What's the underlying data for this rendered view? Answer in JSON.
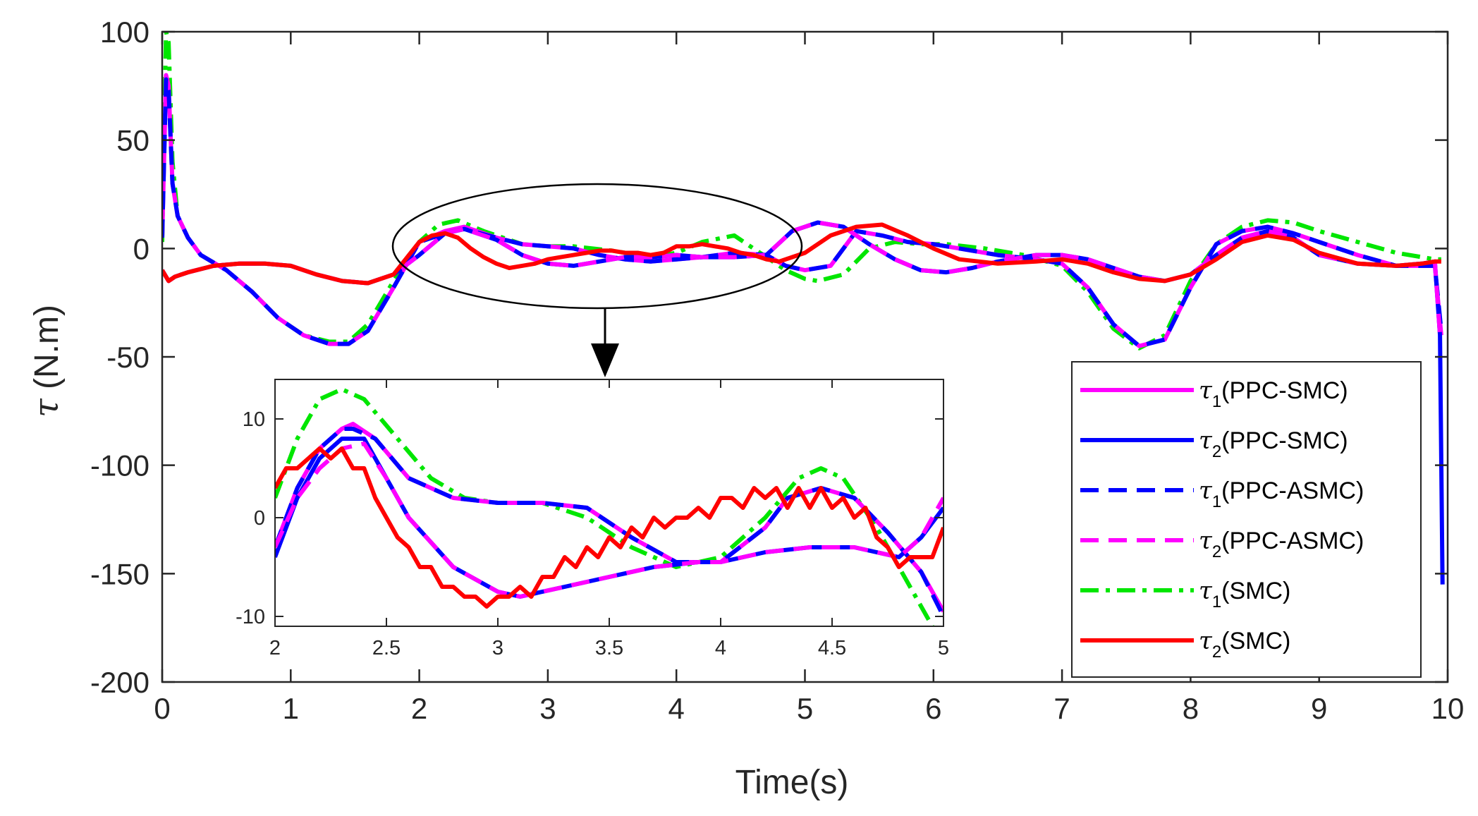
{
  "chart_data": {
    "type": "line",
    "title": "",
    "xlabel": "Time(s)",
    "ylabel_symbol": "τ",
    "ylabel_unit": " (N.m)",
    "xlim": [
      0,
      10
    ],
    "ylim": [
      -200,
      100
    ],
    "xticks": [
      0,
      1,
      2,
      3,
      4,
      5,
      6,
      7,
      8,
      9,
      10
    ],
    "yticks": [
      100,
      50,
      0,
      -50,
      -100,
      -150,
      -200
    ],
    "grid": false,
    "legend_position": "bottom-right",
    "series": [
      {
        "name": "τ1(PPC-SMC)",
        "sym": "τ",
        "sub": "1",
        "ctrl": "(PPC-SMC)",
        "color": "#ff00ff",
        "style": "solid",
        "x": [
          0,
          0.03,
          0.05,
          0.08,
          0.12,
          0.2,
          0.3,
          0.5,
          0.7,
          0.9,
          1.1,
          1.3,
          1.45,
          1.6,
          1.8,
          2.0,
          2.2,
          2.35,
          2.6,
          2.8,
          3.0,
          3.2,
          3.4,
          3.6,
          3.8,
          4.0,
          4.2,
          4.45,
          4.7,
          4.85,
          5.0,
          5.2,
          5.4,
          5.6,
          5.8,
          6.0,
          6.2,
          6.5,
          6.8,
          7.0,
          7.2,
          7.4,
          7.6,
          7.8,
          8.0,
          8.2,
          8.4,
          8.6,
          8.8,
          9.0,
          9.3,
          9.6,
          9.8,
          9.9,
          9.95
        ],
        "y": [
          5,
          80,
          75,
          30,
          15,
          5,
          -3,
          -10,
          -20,
          -32,
          -40,
          -44,
          -44,
          -38,
          -18,
          3,
          8,
          10,
          5,
          2,
          1,
          0,
          -3,
          -5,
          -6,
          -5,
          -4,
          -2,
          -3,
          -8,
          -10,
          -8,
          8,
          6,
          3,
          2,
          0,
          -3,
          -5,
          -7,
          -18,
          -35,
          -45,
          -42,
          -18,
          2,
          8,
          10,
          7,
          3,
          -3,
          -8,
          -8,
          -8,
          -40
        ]
      },
      {
        "name": "τ2(PPC-SMC)",
        "sym": "τ",
        "sub": "2",
        "ctrl": "(PPC-SMC)",
        "color": "#0000ff",
        "style": "solid",
        "x": [
          0,
          0.05,
          0.1,
          0.2,
          0.4,
          0.6,
          0.8,
          1.0,
          1.2,
          1.4,
          1.6,
          1.8,
          2.0,
          2.2,
          2.35,
          2.6,
          2.8,
          3.0,
          3.2,
          3.4,
          3.6,
          3.8,
          4.0,
          4.2,
          4.45,
          4.7,
          4.9,
          5.1,
          5.3,
          5.5,
          5.7,
          5.9,
          6.1,
          6.3,
          6.5,
          6.8,
          7.0,
          7.2,
          7.4,
          7.6,
          7.8,
          8.0,
          8.2,
          8.4,
          8.6,
          8.8,
          9.0,
          9.3,
          9.6,
          9.8,
          9.9,
          9.94,
          9.96
        ],
        "y": [
          -10,
          -15,
          -13,
          -11,
          -8,
          -7,
          -7,
          -8,
          -12,
          -15,
          -16,
          -12,
          -3,
          7,
          9,
          4,
          -3,
          -7,
          -8,
          -6,
          -4,
          -4,
          -3,
          -4,
          -4,
          -3,
          8,
          12,
          10,
          2,
          -5,
          -10,
          -11,
          -9,
          -6,
          -3,
          -3,
          -5,
          -9,
          -13,
          -15,
          -12,
          -3,
          5,
          8,
          5,
          -3,
          -7,
          -8,
          -7,
          -6,
          -40,
          -155
        ]
      },
      {
        "name": "τ1(PPC-ASMC)",
        "sym": "τ",
        "sub": "1",
        "ctrl": "(PPC-ASMC)",
        "color": "#0000ff",
        "style": "dashed",
        "x": [
          0,
          0.03,
          0.05,
          0.08,
          0.12,
          0.2,
          0.3,
          0.5,
          0.7,
          0.9,
          1.1,
          1.3,
          1.45,
          1.6,
          1.8,
          2.0,
          2.2,
          2.35,
          2.6,
          2.8,
          3.0,
          3.2,
          3.4,
          3.6,
          3.8,
          4.0,
          4.2,
          4.45,
          4.7,
          4.85,
          5.0,
          5.2,
          5.4,
          5.6,
          5.8,
          6.0,
          6.2,
          6.5,
          6.8,
          7.0,
          7.2,
          7.4,
          7.6,
          7.8,
          8.0,
          8.2,
          8.4,
          8.6,
          8.8,
          9.0,
          9.3,
          9.6,
          9.8,
          9.9,
          9.95
        ],
        "y": [
          5,
          78,
          73,
          30,
          15,
          5,
          -3,
          -10,
          -20,
          -32,
          -40,
          -44,
          -44,
          -38,
          -18,
          3,
          7,
          9,
          5,
          2,
          1,
          0,
          -3,
          -5,
          -6,
          -5,
          -4,
          -2,
          -3,
          -8,
          -10,
          -8,
          8,
          6,
          3,
          2,
          0,
          -3,
          -5,
          -7,
          -18,
          -35,
          -45,
          -42,
          -18,
          2,
          8,
          10,
          7,
          3,
          -3,
          -8,
          -8,
          -8,
          -38
        ]
      },
      {
        "name": "τ2(PPC-ASMC)",
        "sym": "τ",
        "sub": "2",
        "ctrl": "(PPC-ASMC)",
        "color": "#ff00ff",
        "style": "dashed",
        "x": [
          0,
          0.05,
          0.1,
          0.2,
          0.4,
          0.6,
          0.8,
          1.0,
          1.2,
          1.4,
          1.6,
          1.8,
          2.0,
          2.2,
          2.35,
          2.6,
          2.8,
          3.0,
          3.2,
          3.4,
          3.6,
          3.8,
          4.0,
          4.2,
          4.45,
          4.7,
          4.9,
          5.1,
          5.3,
          5.5,
          5.7,
          5.9,
          6.1,
          6.3,
          6.5,
          6.8,
          7.0,
          7.2,
          7.4,
          7.6,
          7.8,
          8.0,
          8.2,
          8.4,
          8.6,
          8.8,
          9.0,
          9.3,
          9.6,
          9.8,
          9.9,
          9.94,
          9.96
        ],
        "y": [
          -10,
          -15,
          -13,
          -11,
          -8,
          -7,
          -7,
          -8,
          -12,
          -15,
          -16,
          -12,
          -3,
          7,
          9,
          4,
          -3,
          -7,
          -8,
          -6,
          -4,
          -4,
          -3,
          -4,
          -4,
          -3,
          8,
          12,
          10,
          2,
          -5,
          -10,
          -11,
          -9,
          -6,
          -3,
          -3,
          -5,
          -9,
          -13,
          -15,
          -12,
          -3,
          5,
          8,
          5,
          -3,
          -7,
          -8,
          -7,
          -6,
          -40,
          -38
        ]
      },
      {
        "name": "τ1(SMC)",
        "sym": "τ",
        "sub": "1",
        "ctrl": "(SMC)",
        "color": "#00e600",
        "style": "dashdot",
        "x": [
          0,
          0.03,
          0.05,
          0.08,
          0.12,
          0.2,
          0.3,
          0.5,
          0.7,
          0.9,
          1.1,
          1.3,
          1.45,
          1.6,
          1.8,
          2.0,
          2.15,
          2.3,
          2.5,
          2.8,
          3.0,
          3.2,
          3.5,
          3.8,
          4.0,
          4.2,
          4.45,
          4.7,
          4.85,
          5.0,
          5.1,
          5.3,
          5.5,
          5.7,
          5.9,
          6.1,
          6.4,
          6.7,
          7.0,
          7.2,
          7.4,
          7.6,
          7.8,
          8.0,
          8.2,
          8.4,
          8.6,
          8.8,
          9.0,
          9.3,
          9.6,
          9.8,
          9.9,
          9.95
        ],
        "y": [
          3,
          100,
          95,
          40,
          15,
          5,
          -3,
          -10,
          -20,
          -32,
          -40,
          -43,
          -43,
          -35,
          -15,
          3,
          11,
          13,
          8,
          2,
          1,
          1,
          -1,
          -4,
          -2,
          3,
          6,
          -4,
          -10,
          -14,
          -15,
          -12,
          0,
          3,
          2,
          2,
          0,
          -3,
          -8,
          -20,
          -37,
          -46,
          -40,
          -15,
          2,
          10,
          13,
          12,
          8,
          3,
          -2,
          -4,
          -5,
          -5
        ]
      },
      {
        "name": "τ2(SMC)",
        "sym": "τ",
        "sub": "2",
        "ctrl": "(SMC)",
        "color": "#ff0000",
        "style": "solid",
        "x": [
          0,
          0.05,
          0.1,
          0.2,
          0.4,
          0.6,
          0.8,
          1.0,
          1.2,
          1.4,
          1.6,
          1.8,
          2.0,
          2.1,
          2.2,
          2.3,
          2.4,
          2.5,
          2.6,
          2.7,
          2.8,
          2.9,
          3.0,
          3.1,
          3.2,
          3.3,
          3.4,
          3.5,
          3.6,
          3.7,
          3.8,
          3.9,
          4.0,
          4.1,
          4.2,
          4.3,
          4.4,
          4.5,
          4.6,
          4.7,
          4.8,
          4.9,
          5.0,
          5.2,
          5.4,
          5.6,
          5.8,
          6.0,
          6.2,
          6.5,
          6.8,
          7.0,
          7.2,
          7.4,
          7.6,
          7.8,
          8.0,
          8.2,
          8.4,
          8.6,
          8.8,
          9.0,
          9.3,
          9.6,
          9.8,
          9.9,
          9.95
        ],
        "y": [
          -10,
          -15,
          -13,
          -11,
          -8,
          -7,
          -7,
          -8,
          -12,
          -15,
          -16,
          -12,
          3,
          6,
          7,
          5,
          0,
          -4,
          -7,
          -9,
          -8,
          -7,
          -5,
          -4,
          -3,
          -2,
          -1,
          -1,
          -2,
          -2,
          -3,
          -2,
          1,
          1,
          2,
          1,
          0,
          -2,
          -3,
          -5,
          -6,
          -4,
          -2,
          6,
          10,
          11,
          6,
          0,
          -5,
          -7,
          -6,
          -5,
          -7,
          -11,
          -14,
          -15,
          -12,
          -5,
          3,
          6,
          4,
          -2,
          -7,
          -8,
          -7,
          -6,
          -6
        ]
      }
    ],
    "inset": {
      "xlim": [
        2,
        5
      ],
      "ylim": [
        -11,
        14
      ],
      "xticks": [
        2,
        2.5,
        3,
        3.5,
        4,
        4.5,
        5
      ],
      "yticks": [
        10,
        0,
        -10
      ],
      "x_tick_labels": [
        "2",
        "2.5",
        "3",
        "3.5",
        "4",
        "4.5",
        "5"
      ],
      "y_tick_labels": [
        "10",
        "0",
        "-10"
      ],
      "series": [
        {
          "color": "#ff00ff",
          "style": "solid",
          "x": [
            2,
            2.1,
            2.2,
            2.3,
            2.35,
            2.45,
            2.6,
            2.8,
            3.0,
            3.2,
            3.4,
            3.6,
            3.8,
            4.0,
            4.2,
            4.3,
            4.45,
            4.6,
            4.75,
            4.9,
            5.0
          ],
          "y": [
            -3,
            3,
            7,
            9,
            9.5,
            8,
            4,
            2,
            1.5,
            1.5,
            1,
            -2,
            -4.5,
            -4.5,
            -1,
            2,
            3,
            2,
            -1.5,
            -5.5,
            -9.5
          ]
        },
        {
          "color": "#0000ff",
          "style": "solid",
          "x": [
            2,
            2.1,
            2.2,
            2.3,
            2.4,
            2.5,
            2.6,
            2.8,
            3.0,
            3.1,
            3.3,
            3.5,
            3.7,
            3.9,
            4.0,
            4.1,
            4.2,
            4.4,
            4.6,
            4.8,
            4.9,
            5.0
          ],
          "y": [
            -4,
            2,
            6,
            8,
            8,
            4,
            0,
            -5,
            -7.5,
            -8,
            -7,
            -6,
            -5,
            -4.5,
            -4.5,
            -4,
            -3.5,
            -3,
            -3,
            -4,
            -2,
            1
          ]
        },
        {
          "color": "#0000ff",
          "style": "dashed",
          "x": [
            2,
            2.1,
            2.2,
            2.3,
            2.35,
            2.45,
            2.6,
            2.8,
            3.0,
            3.2,
            3.4,
            3.6,
            3.8,
            4.0,
            4.2,
            4.3,
            4.45,
            4.6,
            4.75,
            4.9,
            5.0
          ],
          "y": [
            -3,
            3,
            7,
            9,
            9,
            8,
            4,
            2,
            1.5,
            1.5,
            1,
            -2,
            -4.5,
            -4.5,
            -1,
            2,
            3,
            2,
            -1.5,
            -5.5,
            -10
          ]
        },
        {
          "color": "#ff00ff",
          "style": "dashed",
          "x": [
            2,
            2.1,
            2.2,
            2.3,
            2.4,
            2.5,
            2.6,
            2.8,
            3.0,
            3.1,
            3.3,
            3.5,
            3.7,
            3.9,
            4.0,
            4.1,
            4.2,
            4.4,
            4.6,
            4.8,
            4.9,
            5.0
          ],
          "y": [
            -3,
            2,
            5,
            7,
            7.5,
            4,
            0,
            -5,
            -7.5,
            -8,
            -7,
            -6,
            -5,
            -4.5,
            -4.5,
            -4,
            -3.5,
            -3,
            -3,
            -4,
            -2,
            2
          ]
        },
        {
          "color": "#00e600",
          "style": "dashdot",
          "x": [
            2,
            2.1,
            2.2,
            2.3,
            2.4,
            2.55,
            2.7,
            2.85,
            3.0,
            3.2,
            3.4,
            3.6,
            3.8,
            4.0,
            4.2,
            4.35,
            4.45,
            4.55,
            4.7,
            4.85,
            4.95
          ],
          "y": [
            2,
            8,
            12,
            13,
            12,
            8,
            4,
            2,
            1.5,
            1.5,
            0,
            -3,
            -5,
            -4,
            0,
            4,
            5,
            4,
            -1,
            -7,
            -11
          ]
        },
        {
          "color": "#ff0000",
          "style": "solid",
          "x": [
            2.0,
            2.05,
            2.1,
            2.15,
            2.2,
            2.25,
            2.3,
            2.35,
            2.4,
            2.45,
            2.5,
            2.55,
            2.6,
            2.65,
            2.7,
            2.75,
            2.8,
            2.85,
            2.9,
            2.95,
            3.0,
            3.05,
            3.1,
            3.15,
            3.2,
            3.25,
            3.3,
            3.35,
            3.4,
            3.45,
            3.5,
            3.55,
            3.6,
            3.65,
            3.7,
            3.75,
            3.8,
            3.85,
            3.9,
            3.95,
            4.0,
            4.05,
            4.1,
            4.15,
            4.2,
            4.25,
            4.3,
            4.35,
            4.4,
            4.45,
            4.5,
            4.55,
            4.6,
            4.65,
            4.7,
            4.75,
            4.8,
            4.85,
            4.9,
            4.95,
            5.0
          ],
          "y": [
            3,
            5,
            5,
            6,
            7,
            6,
            7,
            5,
            5,
            2,
            0,
            -2,
            -3,
            -5,
            -5,
            -7,
            -7,
            -8,
            -8,
            -9,
            -8,
            -8,
            -7,
            -8,
            -6,
            -6,
            -4,
            -5,
            -3,
            -4,
            -2,
            -3,
            -1,
            -2,
            0,
            -1,
            0,
            0,
            1,
            0,
            2,
            2,
            1,
            3,
            2,
            3,
            1,
            3,
            1,
            3,
            1,
            2,
            0,
            1,
            -2,
            -3,
            -5,
            -4,
            -4,
            -4,
            -1
          ]
        }
      ]
    },
    "legend_entries": [
      {
        "sym": "τ",
        "sub": "1",
        "ctrl": "(PPC-SMC)",
        "color": "#ff00ff",
        "style": "solid"
      },
      {
        "sym": "τ",
        "sub": "2",
        "ctrl": "(PPC-SMC)",
        "color": "#0000ff",
        "style": "solid"
      },
      {
        "sym": "τ",
        "sub": "1",
        "ctrl": "(PPC-ASMC)",
        "color": "#0000ff",
        "style": "dashed"
      },
      {
        "sym": "τ",
        "sub": "2",
        "ctrl": "(PPC-ASMC)",
        "color": "#ff00ff",
        "style": "dashed"
      },
      {
        "sym": "τ",
        "sub": "1",
        "ctrl": "(SMC)",
        "color": "#00e600",
        "style": "dashdot"
      },
      {
        "sym": "τ",
        "sub": "2",
        "ctrl": "(SMC)",
        "color": "#ff0000",
        "style": "solid"
      }
    ],
    "annotation": "ellipse marks zoom region 2-5 s, arrow points to inset"
  }
}
